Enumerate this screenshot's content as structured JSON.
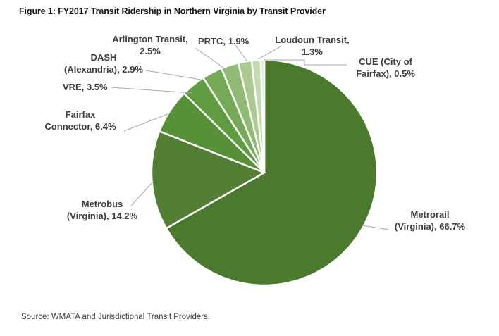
{
  "title": "Figure 1: FY2017 Transit Ridership in Northern Virginia by Transit Provider",
  "source": "Source: WMATA and Jurisdictional Transit Providers.",
  "chart_data": {
    "type": "pie",
    "title": "Figure 1: FY2017 Transit Ridership in Northern Virginia by Transit Provider",
    "start_angle_deg": 0,
    "direction": "clockwise",
    "legend": "none (direct callout labels with leader lines)",
    "slice_border_color": "#ffffff",
    "leader_line_color": "#a8a8a8",
    "label_text_color": "#3d3d3d",
    "slices": [
      {
        "name": "Metrorail (Virginia)",
        "value": 66.7,
        "color": "#4b7a2f",
        "label_line1": "Metrorail",
        "label_line2": "(Virginia), 66.7%"
      },
      {
        "name": "Metrobus (Virginia)",
        "value": 14.2,
        "color": "#527f33",
        "label_line1": "Metrobus",
        "label_line2": "(Virginia), 14.2%"
      },
      {
        "name": "Fairfax Connector",
        "value": 6.4,
        "color": "#569138",
        "label_line1": "Fairfax",
        "label_line2": "Connector, 6.4%"
      },
      {
        "name": "VRE",
        "value": 3.5,
        "color": "#5f9c41",
        "label_line1": "VRE, 3.5%"
      },
      {
        "name": "DASH (Alexandria)",
        "value": 2.9,
        "color": "#76a956",
        "label_line1": "DASH",
        "label_line2": "(Alexandria), 2.9%"
      },
      {
        "name": "Arlington Transit",
        "value": 2.5,
        "color": "#91bb74",
        "label_line1": "Arlington Transit,",
        "label_line2": "2.5%"
      },
      {
        "name": "PRTC",
        "value": 1.9,
        "color": "#abca91",
        "label_line1": "PRTC, 1.9%"
      },
      {
        "name": "Loudoun Transit",
        "value": 1.3,
        "color": "#c6dab1",
        "label_line1": "Loudoun Transit,",
        "label_line2": "1.3%"
      },
      {
        "name": "CUE (City of Fairfax)",
        "value": 0.5,
        "color": "#e0ebd5",
        "label_line1": "CUE (City of",
        "label_line2": "Fairfax), 0.5%"
      }
    ]
  }
}
